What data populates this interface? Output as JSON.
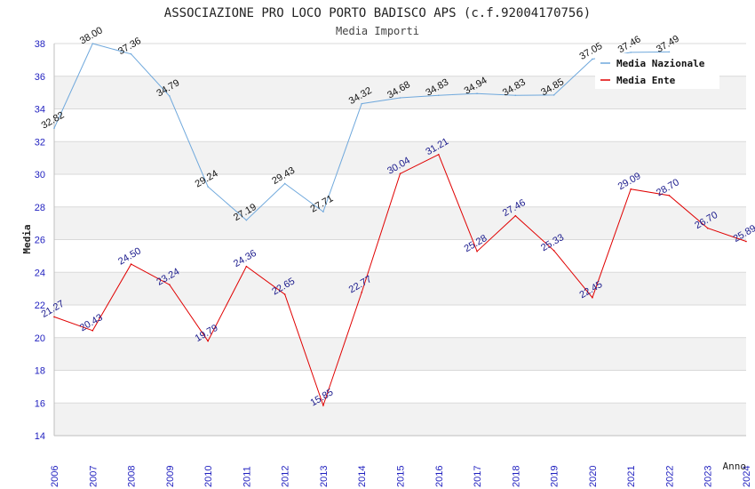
{
  "chart_data": {
    "type": "line",
    "title": "ASSOCIAZIONE PRO LOCO PORTO BADISCO APS (c.f.92004170756)",
    "subtitle": "Media Importi",
    "xlabel": "Anno",
    "ylabel": "Media",
    "ylim": [
      14,
      38
    ],
    "yticks": [
      14,
      16,
      18,
      20,
      22,
      24,
      26,
      28,
      30,
      32,
      34,
      36,
      38
    ],
    "x": [
      "2006",
      "2007",
      "2008",
      "2009",
      "2010",
      "2011",
      "2012",
      "2013",
      "2014",
      "2015",
      "2016",
      "2017",
      "2018",
      "2019",
      "2020",
      "2021",
      "2022",
      "2023",
      "2024"
    ],
    "grid": true,
    "legend_position": "top-right",
    "series": [
      {
        "name": "Media Nazionale",
        "color": "#6fa8dc",
        "values": [
          32.82,
          38.0,
          37.36,
          34.79,
          29.24,
          27.19,
          29.43,
          27.71,
          34.32,
          34.68,
          34.83,
          34.94,
          34.83,
          34.85,
          37.05,
          37.46,
          37.49,
          null,
          null
        ],
        "labels": [
          "32.82",
          "38.00",
          "37.36",
          "34.79",
          "29.24",
          "27.19",
          "29.43",
          "27.71",
          "34.32",
          "34.68",
          "34.83",
          "34.94",
          "34.83",
          "34.85",
          "37.05",
          "37.46",
          "37.49",
          "",
          ""
        ]
      },
      {
        "name": "Media Ente",
        "color": "#e00000",
        "values": [
          21.27,
          20.43,
          24.5,
          23.24,
          19.79,
          24.36,
          22.65,
          15.85,
          22.77,
          30.04,
          31.21,
          25.28,
          27.46,
          25.33,
          22.45,
          29.09,
          28.7,
          26.7,
          25.89
        ],
        "labels": [
          "21.27",
          "20.43",
          "24.50",
          "23.24",
          "19.79",
          "24.36",
          "22.65",
          "15.85",
          "22.77",
          "30.04",
          "31.21",
          "25.28",
          "27.46",
          "25.33",
          "22.45",
          "29.09",
          "28.70",
          "26.70",
          "25.89"
        ]
      }
    ]
  }
}
